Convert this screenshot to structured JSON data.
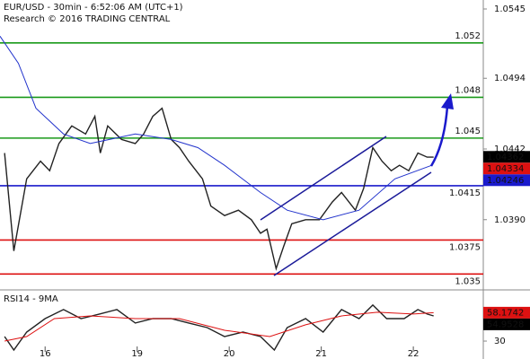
{
  "chart_data": [
    {
      "type": "line",
      "title": "EUR/USD - 30min - 6:52:06 AM (UTC+1)",
      "subtitle": "Research © 2016 TRADING CENTRAL",
      "xlim": [
        -0.49,
        4.76
      ],
      "ylim": [
        1.0339,
        1.05516
      ],
      "yticks": [
        1.0545,
        1.0494,
        1.0442,
        {
          "value": 1.039,
          "label": "1.0390"
        }
      ],
      "series": [
        {
          "name": "EUR/USD",
          "color": "#222222",
          "x": [
            -0.44,
            -0.34,
            -0.2,
            -0.05,
            0.05,
            0.15,
            0.29,
            0.44,
            0.54,
            0.6,
            0.68,
            0.83,
            0.98,
            1.07,
            1.17,
            1.27,
            1.37,
            1.46,
            1.56,
            1.71,
            1.8,
            1.95,
            2.1,
            2.24,
            2.34,
            2.41,
            2.51,
            2.59,
            2.68,
            2.83,
            2.98,
            3.12,
            3.22,
            3.37,
            3.46,
            3.56,
            3.66,
            3.76,
            3.85,
            3.95,
            4.05,
            4.15,
            4.22
          ],
          "values": [
            1.0439,
            1.0367,
            1.042,
            1.0433,
            1.0426,
            1.0446,
            1.0459,
            1.0453,
            1.0466,
            1.0439,
            1.0459,
            1.0449,
            1.0446,
            1.0453,
            1.0466,
            1.0472,
            1.0449,
            1.0443,
            1.0433,
            1.042,
            1.04,
            1.0393,
            1.0397,
            1.039,
            1.038,
            1.0383,
            1.0354,
            1.037,
            1.0387,
            1.039,
            1.039,
            1.0403,
            1.041,
            1.0397,
            1.0413,
            1.0443,
            1.0433,
            1.0426,
            1.043,
            1.0426,
            1.0439,
            1.0436,
            1.0436
          ]
        },
        {
          "name": "MA",
          "color": "#2233cc",
          "x": [
            -0.49,
            -0.29,
            -0.1,
            0.2,
            0.49,
            0.98,
            1.37,
            1.66,
            1.95,
            2.34,
            2.63,
            3.02,
            3.41,
            3.8,
            4.2
          ],
          "values": [
            1.0525,
            1.0505,
            1.0472,
            1.0453,
            1.0446,
            1.0453,
            1.0449,
            1.0443,
            1.043,
            1.041,
            1.0397,
            1.039,
            1.0397,
            1.042,
            1.043
          ]
        }
      ],
      "levels": [
        {
          "value": 1.052,
          "color": "#1a9a1a",
          "label_side": "above"
        },
        {
          "value": 1.048,
          "color": "#1a9a1a",
          "label_side": "above"
        },
        {
          "value": 1.045,
          "color": "#1a9a1a",
          "label_side": "above"
        },
        {
          "value": 1.0415,
          "color": "#1a1acc",
          "label_side": "below"
        },
        {
          "value": 1.0375,
          "color": "#dd1111",
          "label_side": "below"
        },
        {
          "value": 1.035,
          "color": "#dd1111",
          "label_side": "below"
        }
      ],
      "last_prices": [
        {
          "value": 1.04362,
          "color": "#000000"
        },
        {
          "value": 1.04334,
          "color": "#dd1111"
        },
        {
          "value": 1.04246,
          "color": "#1a1acc"
        }
      ]
    },
    {
      "type": "line",
      "title": "RSI14 - 9MA",
      "xlim": [
        -0.49,
        4.76
      ],
      "ylim": [
        14,
        79
      ],
      "yticks": [
        30
      ],
      "xticks": [
        {
          "value": 0,
          "label": "16"
        },
        {
          "value": 1,
          "label": "19"
        },
        {
          "value": 2,
          "label": "20"
        },
        {
          "value": 3,
          "label": "21"
        },
        {
          "value": 4,
          "label": "22"
        }
      ],
      "series": [
        {
          "name": "RSI14",
          "color": "#222222",
          "x": [
            -0.44,
            -0.34,
            -0.2,
            0,
            0.2,
            0.39,
            0.59,
            0.78,
            0.98,
            1.17,
            1.37,
            1.56,
            1.76,
            1.95,
            2.15,
            2.34,
            2.49,
            2.63,
            2.83,
            3.02,
            3.22,
            3.41,
            3.56,
            3.71,
            3.9,
            4.05,
            4.15,
            4.22
          ],
          "values": [
            34.5,
            21.1,
            38.9,
            52.3,
            61.3,
            52.3,
            56.8,
            61.3,
            47.9,
            52.3,
            52.3,
            47.9,
            43.4,
            34.5,
            38.9,
            34.5,
            21.1,
            43.4,
            52.3,
            38.9,
            61.3,
            52.3,
            65.7,
            52.3,
            52.3,
            61.3,
            56.8,
            54.9528
          ]
        },
        {
          "name": "9MA",
          "color": "#dd1111",
          "x": [
            -0.44,
            -0.2,
            0.1,
            0.49,
            0.98,
            1.46,
            1.95,
            2.44,
            2.83,
            3.22,
            3.61,
            4.0,
            4.22
          ],
          "values": [
            30,
            34.5,
            52.3,
            55,
            52.3,
            52.3,
            40.7,
            34.5,
            46.1,
            55,
            58.6,
            56.8,
            58.1742
          ]
        }
      ],
      "last_values": [
        {
          "value": 58.1742,
          "color": "#dd1111"
        },
        {
          "value": 54.9528,
          "color": "#000000"
        }
      ]
    }
  ]
}
